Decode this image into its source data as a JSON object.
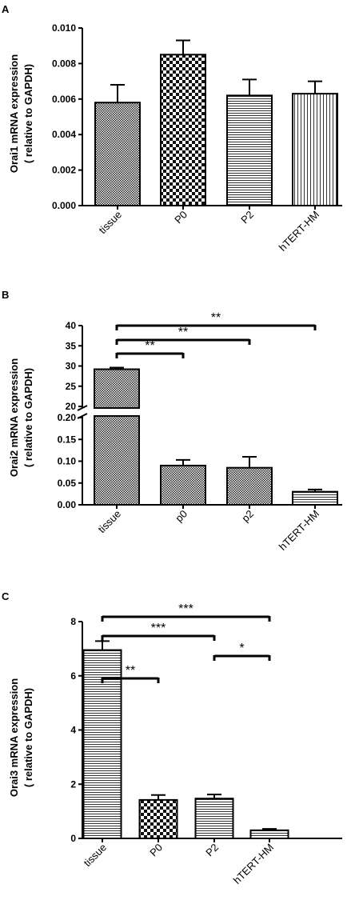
{
  "figure": {
    "panels": [
      "A",
      "B",
      "C"
    ]
  },
  "chart_data": [
    {
      "panel": "A",
      "type": "bar",
      "title": "",
      "ylabel_line1": "Orai1 mRNA expression",
      "ylabel_line2": "( relative to GAPDH)",
      "categories": [
        "tissue",
        "P0",
        "P2",
        "hTERT-HM"
      ],
      "values": [
        0.0058,
        0.0085,
        0.0062,
        0.0063
      ],
      "errors": [
        0.001,
        0.0008,
        0.0009,
        0.0007
      ],
      "ylim": [
        0,
        0.01
      ],
      "yticks": [
        "0.000",
        "0.002",
        "0.004",
        "0.006",
        "0.008",
        "0.010"
      ],
      "patterns": [
        "checker-fine",
        "checker-coarse",
        "horizontal-lines",
        "vertical-lines"
      ],
      "significance": []
    },
    {
      "panel": "B",
      "type": "bar",
      "title": "",
      "ylabel_line1": "Orai2 mRNA expression",
      "ylabel_line2": "( relative to GAPDH)",
      "categories": [
        "tissue",
        "p0",
        "p2",
        "hTERT-HM"
      ],
      "values": [
        29.2,
        0.09,
        0.085,
        0.03
      ],
      "errors": [
        0.4,
        0.013,
        0.025,
        0.005
      ],
      "axis_break": true,
      "lower_range": [
        0,
        0.2
      ],
      "upper_range": [
        20,
        40
      ],
      "lower_ticks": [
        "0.00",
        "0.05",
        "0.10",
        "0.15",
        "0.20"
      ],
      "upper_ticks": [
        "20",
        "25",
        "30",
        "35",
        "40"
      ],
      "patterns": [
        "checker-fine",
        "checker-fine",
        "checker-fine",
        "horizontal-lines"
      ],
      "significance": [
        {
          "from": 0,
          "to": 1,
          "label": "**"
        },
        {
          "from": 0,
          "to": 2,
          "label": "**"
        },
        {
          "from": 0,
          "to": 3,
          "label": "**"
        }
      ]
    },
    {
      "panel": "C",
      "type": "bar",
      "title": "",
      "ylabel_line1": "Orai3 mRNA expression",
      "ylabel_line2": "( relative to GAPDH)",
      "categories": [
        "tissue",
        "P0",
        "P2",
        "hTERT-HM"
      ],
      "values": [
        6.95,
        1.42,
        1.47,
        0.3
      ],
      "errors": [
        0.33,
        0.18,
        0.15,
        0.05
      ],
      "ylim": [
        0,
        8
      ],
      "yticks": [
        "0",
        "2",
        "4",
        "6",
        "8"
      ],
      "patterns": [
        "horizontal-lines",
        "checker-coarse",
        "horizontal-lines",
        "horizontal-lines"
      ],
      "significance": [
        {
          "from": 0,
          "to": 1,
          "label": "**"
        },
        {
          "from": 0,
          "to": 2,
          "label": "***"
        },
        {
          "from": 0,
          "to": 3,
          "label": "***"
        },
        {
          "from": 2,
          "to": 3,
          "label": "*"
        }
      ]
    }
  ]
}
